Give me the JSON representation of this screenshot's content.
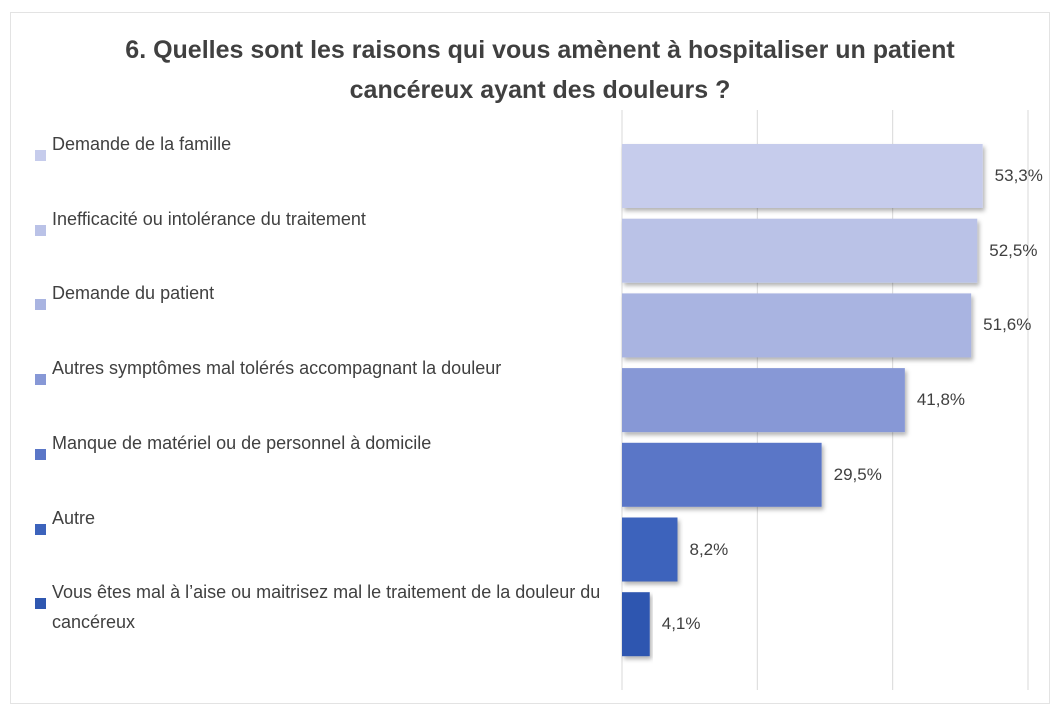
{
  "chart_data": {
    "type": "hbar",
    "title": "6. Quelles sont les raisons qui vous amènent à hospitaliser un patient cancéreux ayant des douleurs ?",
    "categories": [
      "Demande de la famille",
      "Inefficacité ou intolérance du traitement",
      "Demande du patient",
      "Autres symptômes mal tolérés accompagnant la douleur",
      "Manque de matériel ou de personnel à domicile",
      "Autre",
      "Vous êtes mal à l’aise ou maitrisez mal le traitement de la douleur du cancéreux"
    ],
    "values": [
      53.3,
      52.5,
      51.6,
      41.8,
      29.5,
      8.2,
      4.1
    ],
    "value_labels": [
      "53,3%",
      "52,5%",
      "51,6%",
      "41,8%",
      "29,5%",
      "8,2%",
      "4,1%"
    ],
    "colors": [
      "#c6ccec",
      "#bac2e7",
      "#a9b4e1",
      "#8798d6",
      "#5a76c7",
      "#3c63bc",
      "#2f57b0"
    ],
    "xlim": [
      0,
      60
    ],
    "xticks": [
      0,
      20,
      40,
      60
    ],
    "grid": true
  }
}
